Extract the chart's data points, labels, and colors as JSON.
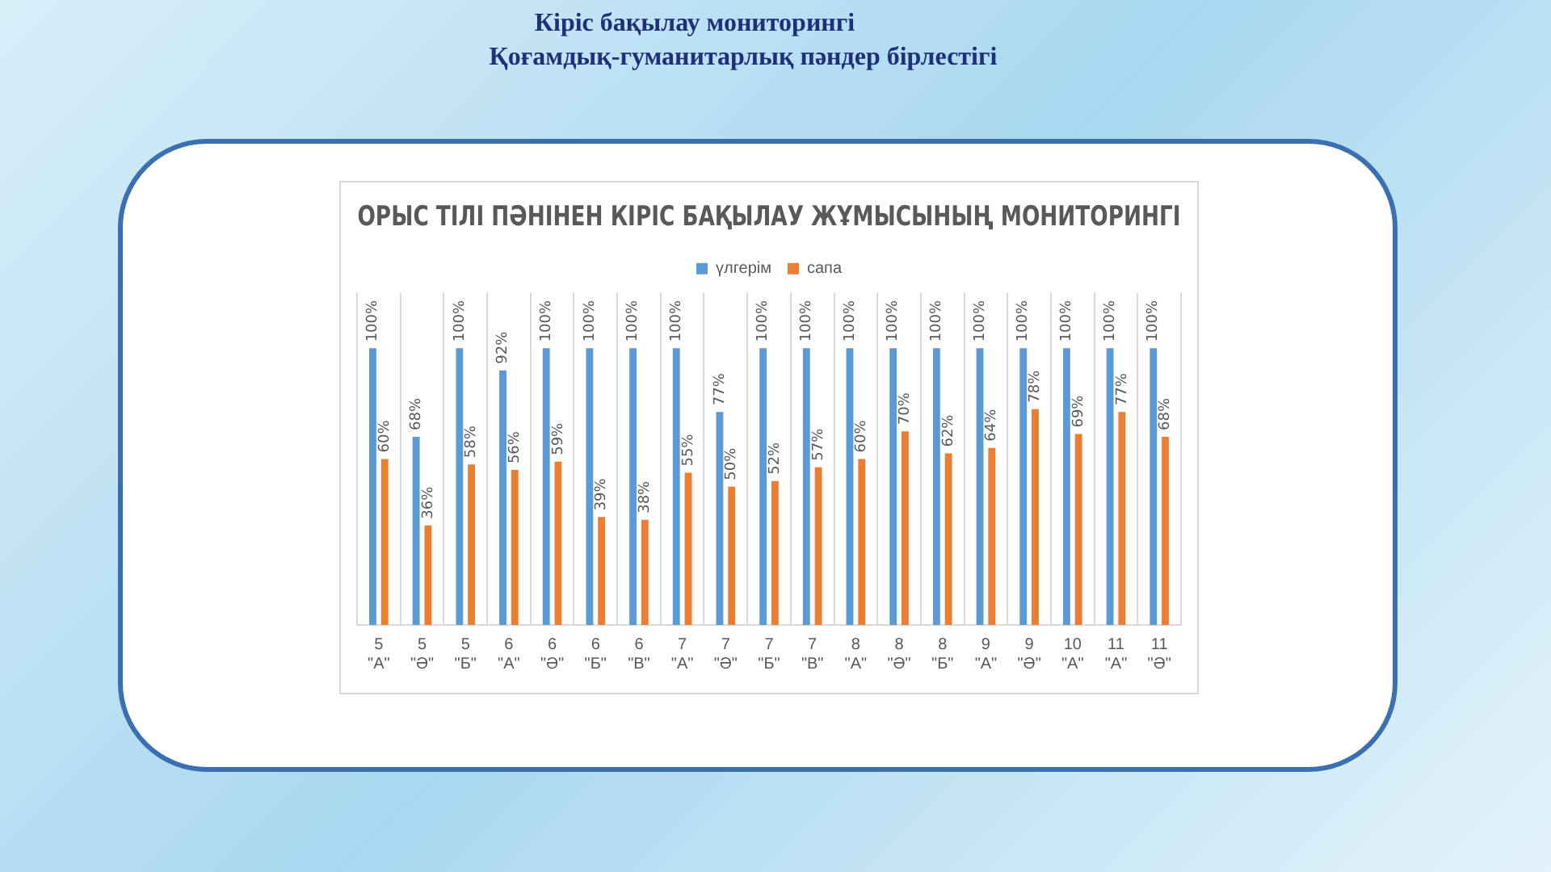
{
  "chart_data": {
    "type": "bar",
    "title": "ОРЫС ТІЛІ ПӘНІНЕН КІРІС БАҚЫЛАУ ЖҰМЫСЫНЫҢ МОНИТОРИНГІ",
    "annotations": [
      "Кіріс бақылау мониторингі",
      "Қоғамдық-гуманитарлық  пәндер бірлестігі"
    ],
    "categories": [
      "5 \"А\"",
      "5 \"Ә\"",
      "5 \"Б\"",
      "6 \"А\"",
      "6 \"Ә\"",
      "6 \"Б\"",
      "6 \"В\"",
      "7 \"А\"",
      "7 \"Ә\"",
      "7 \"Б\"",
      "7 \"В\"",
      "8 \"А\"",
      "8 \"Ә\"",
      "8 \"Б\"",
      "9 \"А\"",
      "9 \"Ә\"",
      "10 \"А\"",
      "11 \"А\"",
      "11 \"Ә\""
    ],
    "series": [
      {
        "name": "үлгерім",
        "color": "#5b9bd5",
        "values": [
          100,
          68,
          100,
          92,
          100,
          100,
          100,
          100,
          77,
          100,
          100,
          100,
          100,
          100,
          100,
          100,
          100,
          100,
          100
        ],
        "value_labels": [
          "100%",
          "68%",
          "100%",
          "92%",
          "100%",
          "100%",
          "100%",
          "100%",
          "77%",
          "100%",
          "100%",
          "100%",
          "100%",
          "100%",
          "100%",
          "100%",
          "100%",
          "100%",
          "100%"
        ]
      },
      {
        "name": "сапа",
        "color": "#ed7d31",
        "values": [
          60,
          36,
          58,
          56,
          59,
          39,
          38,
          55,
          50,
          52,
          57,
          60,
          70,
          62,
          64,
          78,
          69,
          77,
          68
        ],
        "value_labels": [
          "60%",
          "36%",
          "58%",
          "56%",
          "59%",
          "39%",
          "38%",
          "55%",
          "50%",
          "52%",
          "57%",
          "60%",
          "70%",
          "62%",
          "64%",
          "78%",
          "69%",
          "77%",
          "68%"
        ]
      }
    ],
    "legend": "top",
    "grid": "x"
  }
}
